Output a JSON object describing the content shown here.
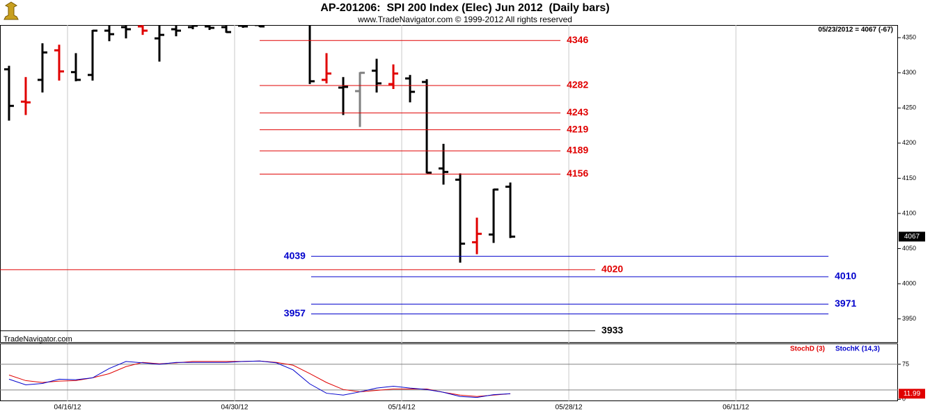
{
  "chart_data": [
    {
      "type": "ohlc",
      "title": "AP-201206:  SPI 200 Index (Elec) Jun 2012  (Daily bars)",
      "subtitle": "www.TradeNavigator.com © 1999-2012 All rights reserved",
      "status": "05/23/2012 = 4067 (-67)",
      "watermark": "TradeNavigator.com",
      "x": [
        0,
        1,
        2,
        3,
        4,
        5,
        6,
        7,
        8,
        9,
        10,
        11,
        12,
        13,
        14,
        15,
        16,
        17,
        18,
        19,
        20,
        21,
        22,
        23,
        24,
        25,
        26,
        27,
        28,
        29,
        30
      ],
      "open": [
        4305,
        4259,
        4290,
        4332,
        4301,
        4297,
        4360,
        4365,
        4366,
        4349,
        4362,
        4365,
        4366,
        4365,
        4367,
        4368,
        null,
        null,
        4370,
        4290,
        4279,
        4274,
        4303,
        4284,
        4292,
        4287,
        4164,
        4148,
        4059,
        4070,
        4138
      ],
      "high": [
        4310,
        4294,
        4342,
        4340,
        4328,
        4361,
        4370,
        4372,
        4372,
        4372,
        4375,
        4372,
        4372,
        4372,
        4372,
        4372,
        null,
        null,
        4380,
        4328,
        4294,
        4301,
        4320,
        4312,
        4297,
        4291,
        4199,
        4157,
        4094,
        4135,
        4144
      ],
      "low": [
        4232,
        4240,
        4272,
        4289,
        4288,
        4289,
        4345,
        4349,
        4354,
        4316,
        4352,
        4362,
        4361,
        4357,
        4364,
        4365,
        null,
        null,
        4284,
        4285,
        4240,
        4223,
        4272,
        4277,
        4258,
        4157,
        4141,
        4030,
        4042,
        4058,
        4065
      ],
      "close": [
        4253,
        4258,
        4329,
        4302,
        4290,
        4360,
        4355,
        4362,
        4360,
        4354,
        4360,
        4367,
        4364,
        4358,
        4366,
        4366,
        null,
        null,
        4288,
        4299,
        4280,
        4300,
        4285,
        4299,
        4273,
        4158,
        4159,
        4057,
        4071,
        4134,
        4067
      ],
      "colors": [
        "#000000",
        "#e00000",
        "#000000",
        "#e00000",
        "#000000",
        "#000000",
        "#000000",
        "#000000",
        "#e00000",
        "#000000",
        "#000000",
        "#000000",
        "#000000",
        "#000000",
        "#000000",
        "#000000",
        null,
        null,
        "#000000",
        "#e00000",
        "#000000",
        "#808080",
        "#000000",
        "#e00000",
        "#000000",
        "#000000",
        "#000000",
        "#000000",
        "#e00000",
        "#000000",
        "#000000"
      ],
      "xlim": [
        -0.54,
        53.2
      ],
      "ylim": [
        3916,
        4368
      ],
      "yticks": [
        3950,
        4000,
        4050,
        4100,
        4150,
        4200,
        4250,
        4300,
        4350
      ],
      "xticks": [
        {
          "value": 3.5,
          "label": "04/16/12"
        },
        {
          "value": 13.5,
          "label": "04/30/12"
        },
        {
          "value": 23.5,
          "label": "05/14/12"
        },
        {
          "value": 33.5,
          "label": "05/28/12"
        },
        {
          "value": 43.5,
          "label": "06/11/12"
        }
      ],
      "grid": true,
      "levels": [
        {
          "value": 4346,
          "color": "#e00000",
          "from": 15,
          "to": 33,
          "label_side": "right"
        },
        {
          "value": 4282,
          "color": "#e00000",
          "from": 15,
          "to": 33,
          "label_side": "right"
        },
        {
          "value": 4243,
          "color": "#e00000",
          "from": 15,
          "to": 33,
          "label_side": "right"
        },
        {
          "value": 4219,
          "color": "#e00000",
          "from": 15,
          "to": 33,
          "label_side": "right"
        },
        {
          "value": 4189,
          "color": "#e00000",
          "from": 15,
          "to": 33,
          "label_side": "right"
        },
        {
          "value": 4156,
          "color": "#e00000",
          "from": 15,
          "to": 33,
          "label_side": "right"
        },
        {
          "value": 4039,
          "color": "#0000cc",
          "from": 18.08,
          "to": 49.04,
          "label_side": "left"
        },
        {
          "value": 4020,
          "color": "#e00000",
          "from": -0.54,
          "to": 35.08,
          "label_side": "right"
        },
        {
          "value": 4010,
          "color": "#0000cc",
          "from": 18.08,
          "to": 49.04,
          "label_side": "right"
        },
        {
          "value": 3971,
          "color": "#0000cc",
          "from": 18.08,
          "to": 49.04,
          "label_side": "right"
        },
        {
          "value": 3957,
          "color": "#0000cc",
          "from": 18.08,
          "to": 49.04,
          "label_side": "left"
        },
        {
          "value": 3933,
          "color": "#000000",
          "from": -0.54,
          "to": 35.08,
          "label_side": "right"
        }
      ]
    },
    {
      "type": "line",
      "series": [
        {
          "name": "StochD (3)",
          "color": "#e00000",
          "values": [
            52,
            40,
            36,
            39,
            40,
            46,
            55,
            70,
            79,
            76,
            78,
            81,
            81,
            81,
            81,
            82,
            79,
            73,
            55,
            36,
            21,
            16,
            19,
            22,
            22,
            22,
            15,
            9,
            6,
            9,
            11.99
          ]
        },
        {
          "name": "StochK (14,3)",
          "color": "#0000cc",
          "values": [
            43,
            31,
            34,
            43,
            42,
            46,
            66,
            81,
            78,
            75,
            79,
            79,
            79,
            79,
            81,
            82,
            78,
            63,
            33,
            13,
            9,
            16,
            24,
            28,
            24,
            21,
            15,
            6,
            4,
            10,
            12
          ]
        }
      ],
      "ylim": [
        -4,
        118
      ],
      "yticks": [
        0,
        75
      ],
      "levels": [
        20,
        75
      ]
    }
  ]
}
